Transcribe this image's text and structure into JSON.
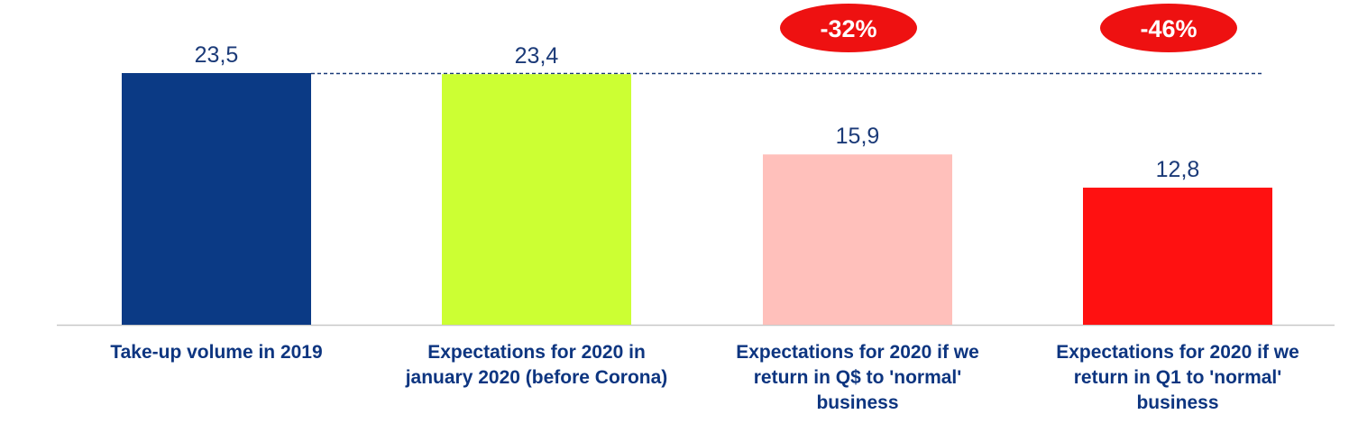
{
  "chart_data": {
    "type": "bar",
    "categories": [
      [
        "Take-up volume in 2019"
      ],
      [
        "Expectations for 2020 in",
        "january 2020 (before Corona)"
      ],
      [
        "Expectations for 2020 if we",
        "return in Q$ to 'normal'",
        "business"
      ],
      [
        "Expectations for 2020 if we",
        "return in Q1 to 'normal'",
        "business"
      ]
    ],
    "values": [
      23.5,
      23.4,
      15.9,
      12.8
    ],
    "value_labels": [
      "23,5",
      "23,4",
      "15,9",
      "12,8"
    ],
    "bar_colors": [
      "#0b3a85",
      "#ccff33",
      "#ffc0bb",
      "#ff1111"
    ],
    "badges": [
      {
        "bar_index": 2,
        "text": "-32%",
        "color": "#ee1111"
      },
      {
        "bar_index": 3,
        "text": "-46%",
        "color": "#ee1111"
      }
    ],
    "reference_line": {
      "value": 23.5,
      "style": "dashed",
      "color": "#1b3a78"
    },
    "ylim": [
      0,
      23.5
    ],
    "grid": false,
    "legend": "none",
    "title": "",
    "xlabel": "",
    "ylabel": ""
  }
}
